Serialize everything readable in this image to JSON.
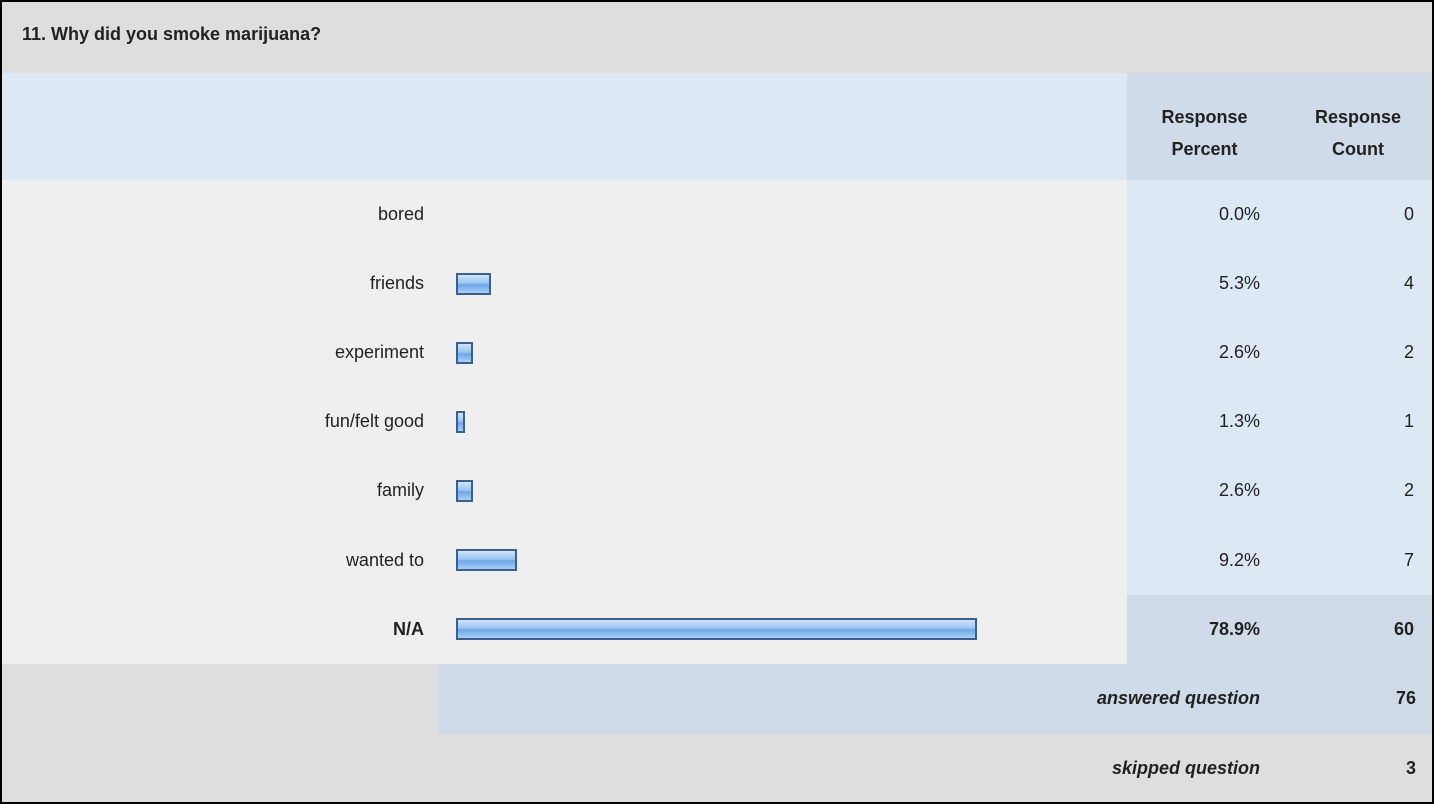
{
  "title": "11. Why did you smoke marijuana?",
  "header": {
    "percent": [
      "Response",
      "Percent"
    ],
    "count": [
      "Response",
      "Count"
    ]
  },
  "rows": [
    {
      "label": "bored",
      "percent": 0.0,
      "percent_label": "0.0%",
      "count": 0
    },
    {
      "label": "friends",
      "percent": 5.3,
      "percent_label": "5.3%",
      "count": 4
    },
    {
      "label": "experiment",
      "percent": 2.6,
      "percent_label": "2.6%",
      "count": 2
    },
    {
      "label": "fun/felt good",
      "percent": 1.3,
      "percent_label": "1.3%",
      "count": 1
    },
    {
      "label": "family",
      "percent": 2.6,
      "percent_label": "2.6%",
      "count": 2
    },
    {
      "label": "wanted to",
      "percent": 9.2,
      "percent_label": "9.2%",
      "count": 7
    },
    {
      "label": "N/A",
      "percent": 78.9,
      "percent_label": "78.9%",
      "count": 60
    }
  ],
  "answered": {
    "label": "answered question",
    "value": 76
  },
  "skipped": {
    "label": "skipped question",
    "value": 3
  }
}
